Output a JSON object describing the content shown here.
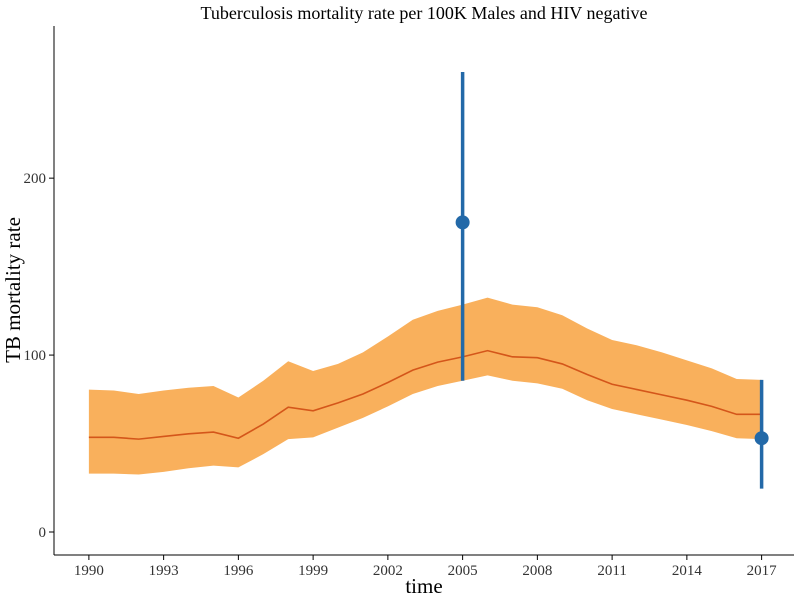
{
  "chart_data": {
    "type": "line",
    "title": "Tuberculosis mortality rate per 100K Males and HIV negative",
    "xlabel": "time",
    "ylabel": "TB mortality rate",
    "xlim": [
      1988.6,
      2018.3
    ],
    "ylim": [
      -13,
      286
    ],
    "x_ticks": [
      1990,
      1993,
      1996,
      1999,
      2002,
      2005,
      2008,
      2011,
      2014,
      2017
    ],
    "x_tick_labels": [
      "1990",
      "1993",
      "1996",
      "1999",
      "2002",
      "2005",
      "2008",
      "2011",
      "2014",
      "2017"
    ],
    "y_ticks": [
      0,
      100,
      200
    ],
    "y_tick_labels": [
      "0",
      "100",
      "200"
    ],
    "grid": false,
    "colors": {
      "band": "#f9b05c",
      "line": "#d4561a",
      "points": "#2369a8"
    },
    "series": [
      {
        "type": "band",
        "x": [
          1990,
          1991,
          1992,
          1993,
          1994,
          1995,
          1996,
          1997,
          1998,
          1999,
          2000,
          2001,
          2002,
          2003,
          2004,
          2005,
          2006,
          2007,
          2008,
          2009,
          2010,
          2011,
          2012,
          2013,
          2014,
          2015,
          2016,
          2017
        ],
        "lower": [
          33,
          33,
          32.5,
          34,
          36,
          37.5,
          36.5,
          44,
          52.5,
          53.5,
          59,
          64.5,
          71,
          78,
          82.5,
          85.5,
          88.5,
          85.5,
          84,
          81,
          74.5,
          69.5,
          66.5,
          63.5,
          60.5,
          57,
          53,
          52.5
        ],
        "upper": [
          80.5,
          80,
          78,
          80,
          81.5,
          82.5,
          76,
          85.5,
          96.5,
          91,
          95,
          101.5,
          110.5,
          120,
          125,
          128.5,
          132.5,
          128.5,
          127,
          122.5,
          115,
          108.5,
          105.5,
          101.5,
          97,
          92.5,
          86.5,
          86
        ]
      },
      {
        "type": "line",
        "x": [
          1990,
          1991,
          1992,
          1993,
          1994,
          1995,
          1996,
          1997,
          1998,
          1999,
          2000,
          2001,
          2002,
          2003,
          2004,
          2005,
          2006,
          2007,
          2008,
          2009,
          2010,
          2011,
          2012,
          2013,
          2014,
          2015,
          2016,
          2017
        ],
        "y": [
          53.5,
          53.5,
          52.5,
          54,
          55.5,
          56.5,
          53,
          61,
          70.5,
          68.5,
          73,
          78,
          84.5,
          91.5,
          96,
          99,
          102.5,
          99,
          98.5,
          95,
          89,
          83.5,
          80.5,
          77.5,
          74.5,
          71,
          66.5,
          66.5
        ]
      },
      {
        "type": "pointrange",
        "x": [
          2005,
          2017
        ],
        "y": [
          175,
          53
        ],
        "lower": [
          85.5,
          24.5
        ],
        "upper": [
          260,
          86
        ]
      }
    ]
  }
}
